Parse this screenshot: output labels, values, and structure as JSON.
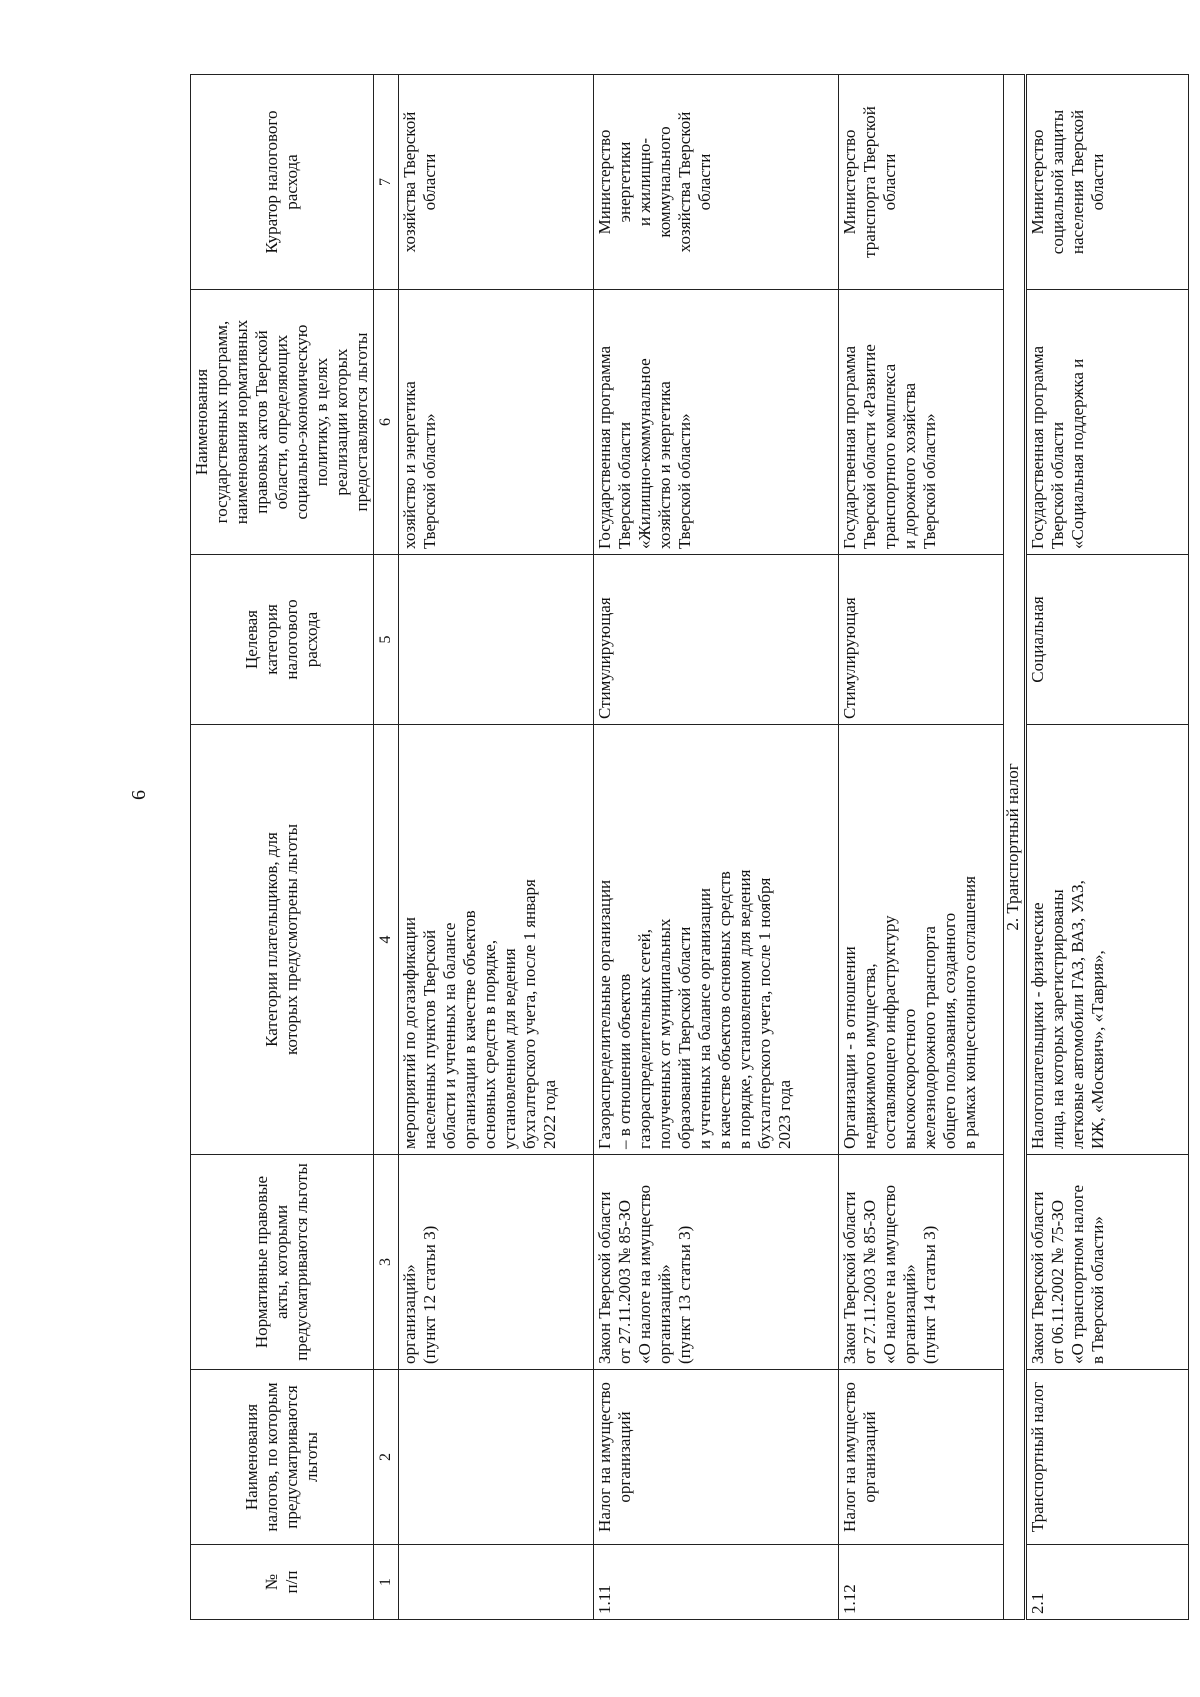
{
  "page_number": "6",
  "header": [
    "№\nп/п",
    "Наименования\nналогов, по которым\nпредусматриваются\nльготы",
    "Нормативные правовые\nакты, которыми\nпредусматриваются льготы",
    "Категории плательщиков, для\nкоторых предусмотрены льготы",
    "Целевая\nкатегория\nналогового\nрасхода",
    "Наименования\nгосударственных программ,\nнаименования нормативных\nправовых актов Тверской\nобласти, определяющих\nсоциально-экономическую\nполитику, в целях\nреализации которых\nпредоставляются льготы",
    "Куратор налогового\nрасхода"
  ],
  "column_numbers": [
    "1",
    "2",
    "3",
    "4",
    "5",
    "6",
    "7"
  ],
  "rows": [
    [
      "",
      "",
      "организаций»\n(пункт 12 статьи 3)",
      "мероприятий по догазификации\nнаселенных пунктов Тверской\nобласти и учтенных на балансе\nорганизации в качестве объектов\nосновных средств в порядке,\nустановленном для ведения\nбухгалтерского учета, после 1 января\n2022 года",
      "",
      "хозяйство и энергетика\nТверской области»",
      "хозяйства Тверской\nобласти"
    ],
    [
      "1.11",
      "Налог на имущество\nорганизаций",
      "Закон Тверской области\nот 27.11.2003 № 85-ЗО\n«О налоге на имущество\nорганизаций»\n(пункт 13 статьи 3)",
      "Газораспределительные организации\n– в отношении объектов\nгазораспределительных сетей,\nполученных от муниципальных\nобразований Тверской области\nи учтенных на балансе организации\nв качестве объектов основных средств\nв порядке, установленном для ведения\nбухгалтерского учета, после 1 ноября\n2023 года",
      "Стимулирующая",
      "Государственная программа\nТверской области\n«Жилищно-коммунальное\nхозяйство и энергетика\nТверской области»",
      "Министерство\nэнергетики\nи жилищно-\nкоммунального\nхозяйства Тверской\nобласти"
    ],
    [
      "1.12",
      "Налог на имущество\nорганизаций",
      "Закон Тверской области\nот 27.11.2003 № 85-ЗО\n«О налоге на имущество\nорганизаций»\n(пункт 14 статьи 3)",
      "Организации - в отношении\nнедвижимого имущества,\nсоставляющего инфраструктуру\nвысокоскоростного\nжелезнодорожного транспорта\nобщего пользования, созданного\nв рамках концессионного соглашения",
      "Стимулирующая",
      "Государственная программа\nТверской области «Развитие\nтранспортного комплекса\nи дорожного хозяйства\nТверской области»",
      "Министерство\nтранспорта Тверской\nобласти"
    ]
  ],
  "section_title": "2. Транспортный налог",
  "section_rows": [
    [
      "2.1",
      "Транспортный налог",
      "Закон Тверской области\nот 06.11.2002 № 75-ЗО\n«О транспортном налоге\nв Тверской области»",
      "Налогоплательщики - физические\nлица, на которых зарегистрированы\nлегковые автомобили ГАЗ, ВАЗ, УАЗ,\nИЖ, «Москвич», «Таврия»,",
      "Социальная",
      "Государственная программа\nТверской области\n«Социальная поддержка и",
      "Министерство\nсоциальной защиты\nнаселения Тверской\nобласти"
    ]
  ]
}
